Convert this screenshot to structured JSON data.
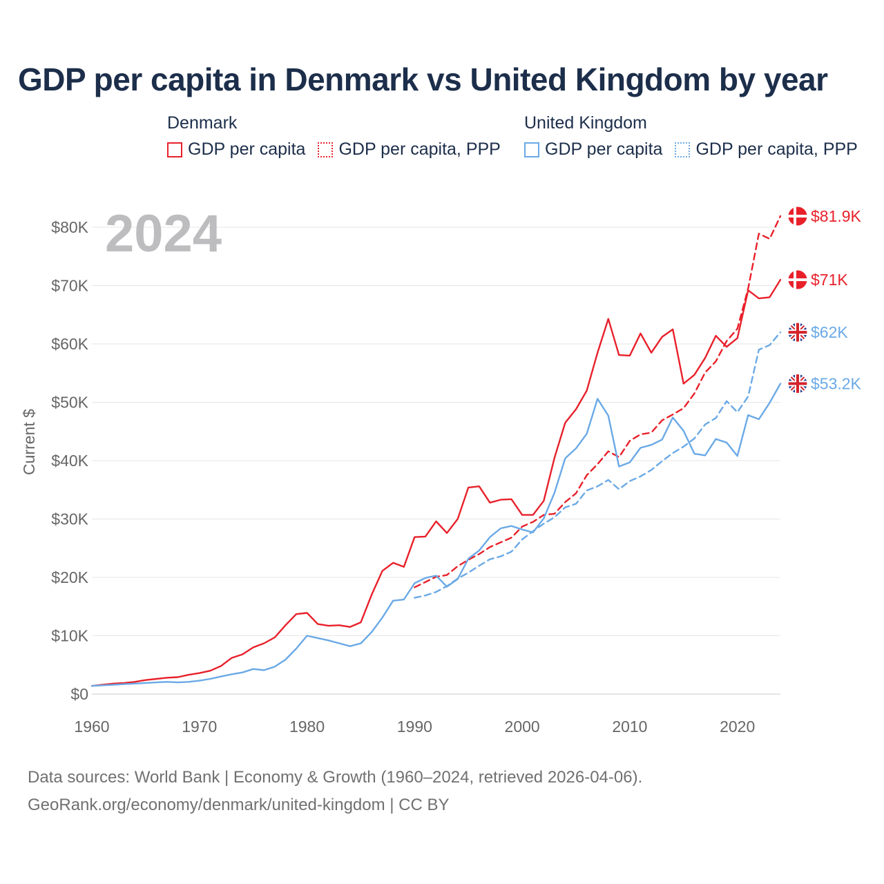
{
  "title": "GDP per capita in Denmark vs United Kingdom by year",
  "legend": {
    "groups": [
      {
        "name": "Denmark",
        "items": [
          {
            "label": "GDP per capita",
            "style": "solid",
            "color": "#e8202a"
          },
          {
            "label": "GDP per capita, PPP",
            "style": "dotted",
            "color": "#e8202a"
          }
        ]
      },
      {
        "name": "United Kingdom",
        "items": [
          {
            "label": "GDP per capita",
            "style": "solid",
            "color": "#6aa9e6"
          },
          {
            "label": "GDP per capita, PPP",
            "style": "dotted",
            "color": "#6aa9e6"
          }
        ]
      }
    ]
  },
  "year_watermark": "2024",
  "footer": {
    "line1": "Data sources: World Bank | Economy & Growth (1960–2024, retrieved 2026-04-06).",
    "line2": "GeoRank.org/economy/denmark/united-kingdom | CC BY"
  },
  "chart_data": {
    "type": "line",
    "title": "GDP per capita in Denmark vs United Kingdom by year",
    "xlabel": "",
    "ylabel": "Current $",
    "xlim": [
      1960,
      2024
    ],
    "ylim": [
      0,
      80000
    ],
    "x_ticks": [
      1960,
      1970,
      1980,
      1990,
      2000,
      2010,
      2020
    ],
    "x_tick_labels": [
      "1960",
      "1970",
      "1980",
      "1990",
      "2000",
      "2010",
      "2020"
    ],
    "y_ticks": [
      0,
      10000,
      20000,
      30000,
      40000,
      50000,
      60000,
      70000,
      80000
    ],
    "y_tick_labels": [
      "$0",
      "$10K",
      "$20K",
      "$30K",
      "$40K",
      "$50K",
      "$60K",
      "$70K",
      "$80K"
    ],
    "grid": true,
    "series": [
      {
        "name": "Denmark GDP per capita",
        "color": "#e8202a",
        "dash": false,
        "flag": "denmark",
        "end_label": "$71K",
        "x": [
          1960,
          1961,
          1962,
          1963,
          1964,
          1965,
          1966,
          1967,
          1968,
          1969,
          1970,
          1971,
          1972,
          1973,
          1974,
          1975,
          1976,
          1977,
          1978,
          1979,
          1980,
          1981,
          1982,
          1983,
          1984,
          1985,
          1986,
          1987,
          1988,
          1989,
          1990,
          1991,
          1992,
          1993,
          1994,
          1995,
          1996,
          1997,
          1998,
          1999,
          2000,
          2001,
          2002,
          2003,
          2004,
          2005,
          2006,
          2007,
          2008,
          2009,
          2010,
          2011,
          2012,
          2013,
          2014,
          2015,
          2016,
          2017,
          2018,
          2019,
          2020,
          2021,
          2022,
          2023,
          2024
        ],
        "values": [
          1400,
          1600,
          1800,
          1900,
          2100,
          2400,
          2600,
          2800,
          2900,
          3300,
          3600,
          4000,
          4800,
          6200,
          6800,
          8000,
          8700,
          9700,
          11800,
          13700,
          13900,
          12000,
          11700,
          11800,
          11500,
          12300,
          17000,
          21100,
          22500,
          21800,
          26900,
          27000,
          29600,
          27600,
          30000,
          35400,
          35600,
          32800,
          33300,
          33400,
          30700,
          30700,
          33100,
          40500,
          46500,
          48800,
          52000,
          58500,
          64300,
          58100,
          58000,
          61800,
          58500,
          61200,
          62500,
          53200,
          54700,
          57600,
          61400,
          59500,
          61000,
          69200,
          67800,
          68000,
          71000
        ]
      },
      {
        "name": "Denmark GDP per capita, PPP",
        "color": "#e8202a",
        "dash": true,
        "flag": "denmark",
        "end_label": "$81.9K",
        "x": [
          1990,
          1991,
          1992,
          1993,
          1994,
          1995,
          1996,
          1997,
          1998,
          1999,
          2000,
          2001,
          2002,
          2003,
          2004,
          2005,
          2006,
          2007,
          2008,
          2009,
          2010,
          2011,
          2012,
          2013,
          2014,
          2015,
          2016,
          2017,
          2018,
          2019,
          2020,
          2021,
          2022,
          2023,
          2024
        ],
        "values": [
          18300,
          19200,
          20100,
          20400,
          21900,
          23000,
          24000,
          25200,
          26000,
          26800,
          28700,
          29500,
          30700,
          30900,
          32900,
          34400,
          37500,
          39400,
          41600,
          40600,
          43400,
          44500,
          44800,
          46900,
          47900,
          49000,
          51500,
          55100,
          57000,
          60500,
          62600,
          69500,
          78900,
          78000,
          81900
        ]
      },
      {
        "name": "United Kingdom GDP per capita",
        "color": "#6aa9e6",
        "dash": false,
        "flag": "uk",
        "end_label": "$53.2K",
        "x": [
          1960,
          1961,
          1962,
          1963,
          1964,
          1965,
          1966,
          1967,
          1968,
          1969,
          1970,
          1971,
          1972,
          1973,
          1974,
          1975,
          1976,
          1977,
          1978,
          1979,
          1980,
          1981,
          1982,
          1983,
          1984,
          1985,
          1986,
          1987,
          1988,
          1989,
          1990,
          1991,
          1992,
          1993,
          1994,
          1995,
          1996,
          1997,
          1998,
          1999,
          2000,
          2001,
          2002,
          2003,
          2004,
          2005,
          2006,
          2007,
          2008,
          2009,
          2010,
          2011,
          2012,
          2013,
          2014,
          2015,
          2016,
          2017,
          2018,
          2019,
          2020,
          2021,
          2022,
          2023,
          2024
        ],
        "values": [
          1400,
          1500,
          1600,
          1700,
          1800,
          1900,
          2000,
          2100,
          2000,
          2100,
          2300,
          2600,
          3000,
          3400,
          3700,
          4300,
          4100,
          4700,
          5900,
          7800,
          10000,
          9600,
          9200,
          8700,
          8200,
          8700,
          10600,
          13100,
          16000,
          16200,
          19000,
          19900,
          20300,
          18400,
          19700,
          23200,
          24600,
          26900,
          28400,
          28800,
          28200,
          27700,
          30100,
          34500,
          40400,
          42100,
          44600,
          50600,
          47700,
          39000,
          39700,
          42200,
          42700,
          43600,
          47400,
          45100,
          41200,
          40900,
          43700,
          43100,
          40800,
          47800,
          47100,
          49900,
          53200
        ]
      },
      {
        "name": "United Kingdom GDP per capita, PPP",
        "color": "#6aa9e6",
        "dash": true,
        "flag": "uk",
        "end_label": "$62K",
        "x": [
          1990,
          1991,
          1992,
          1993,
          1994,
          1995,
          1996,
          1997,
          1998,
          1999,
          2000,
          2001,
          2002,
          2003,
          2004,
          2005,
          2006,
          2007,
          2008,
          2009,
          2010,
          2011,
          2012,
          2013,
          2014,
          2015,
          2016,
          2017,
          2018,
          2019,
          2020,
          2021,
          2022,
          2023,
          2024
        ],
        "values": [
          16500,
          16900,
          17500,
          18500,
          19800,
          20800,
          22000,
          23100,
          23600,
          24400,
          26500,
          27900,
          29200,
          30300,
          32000,
          32600,
          34900,
          35600,
          36700,
          35100,
          36500,
          37300,
          38400,
          39900,
          41300,
          42400,
          43800,
          46200,
          47300,
          50200,
          48300,
          51000,
          59000,
          59800,
          62000
        ]
      }
    ]
  }
}
